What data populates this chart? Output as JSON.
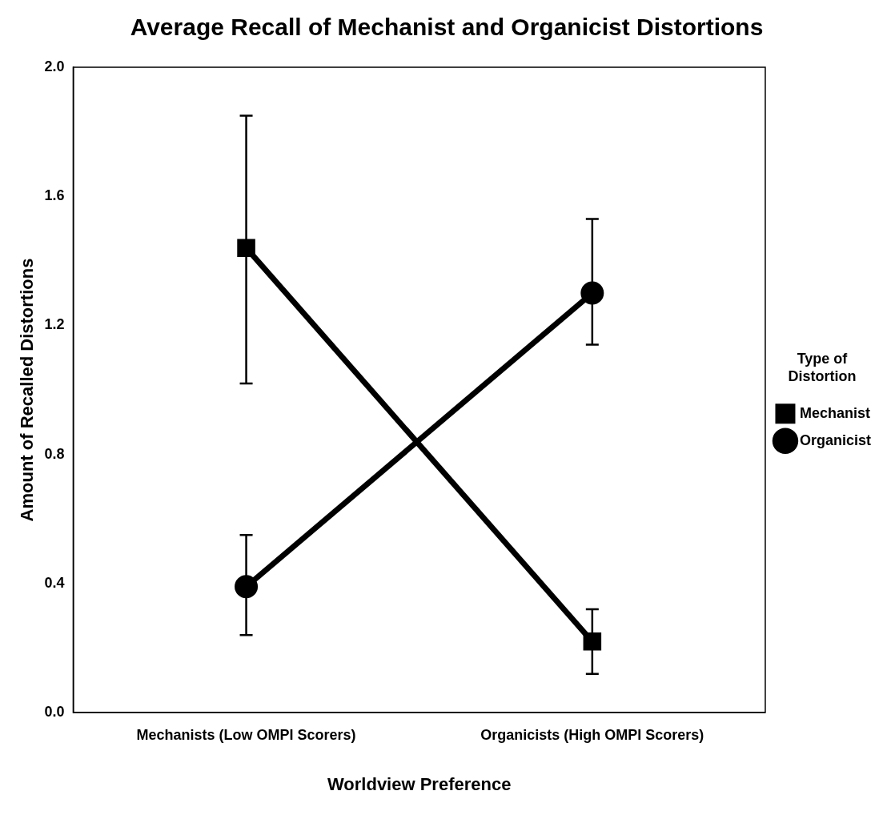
{
  "chart_data": {
    "type": "line",
    "title": "Average Recall of Mechanist and Organicist Distortions",
    "xlabel": "Worldview Preference",
    "ylabel": "Amount of Recalled Distortions",
    "legend_title": "Type of Distortion",
    "categories": [
      "Mechanists (Low OMPI Scorers)",
      "Organicists (High OMPI Scorers)"
    ],
    "series": [
      {
        "name": "Mechanist",
        "color": "#000000",
        "marker": "square",
        "values": [
          1.44,
          0.22
        ],
        "errors": [
          [
            1.02,
            1.85
          ],
          [
            0.12,
            0.32
          ]
        ]
      },
      {
        "name": "Organicist",
        "color": "#000000",
        "marker": "circle",
        "values": [
          0.39,
          1.3
        ],
        "errors": [
          [
            0.24,
            0.55
          ],
          [
            1.14,
            1.53
          ]
        ]
      }
    ],
    "ylim": [
      0,
      2
    ],
    "yticks": [
      {
        "value": 0,
        "label": "0.0"
      },
      {
        "value": 0.4,
        "label": "0.4"
      },
      {
        "value": 0.8,
        "label": "0.8"
      },
      {
        "value": 1.2,
        "label": "1.2"
      },
      {
        "value": 1.6,
        "label": "1.6"
      },
      {
        "value": 2,
        "label": "2.0"
      }
    ],
    "grid": false,
    "legend": "right",
    "line_style": "solid"
  }
}
